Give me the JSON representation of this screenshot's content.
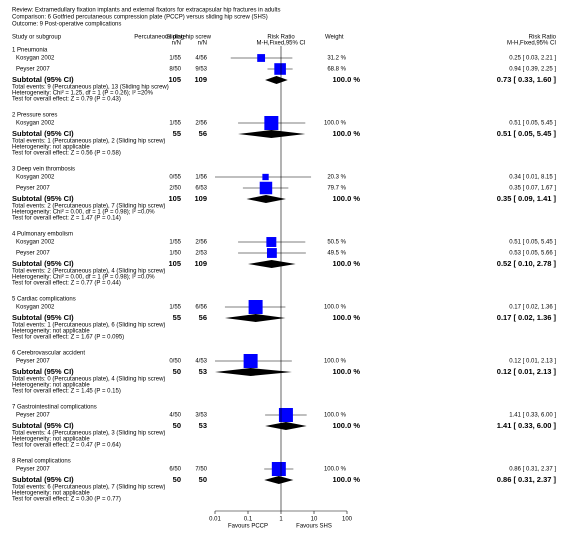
{
  "header": {
    "review": "Review:   Extramedullary fixation implants and external fixators for extracapsular hip fractures in adults",
    "comparison": "Comparison:   6 Gotfried percutaneous compression plate (PCCP) versus sliding hip screw (SHS)",
    "outcome": "Outcome:   9 Post-operative complications"
  },
  "columns": {
    "study": "Study or subgroup",
    "group1": "Percutaneous plate",
    "group1_sub": "n/N",
    "group2": "Sliding hip screw",
    "group2_sub": "n/N",
    "plot": "Risk Ratio",
    "plot_sub": "M-H,Fixed,95% CI",
    "weight": "Weight",
    "ci": "Risk Ratio",
    "ci_sub": "M-H,Fixed,95% CI"
  },
  "chart_data": {
    "type": "forest",
    "xlim": [
      0.01,
      100
    ],
    "xticks": [
      0.01,
      0.1,
      1,
      10,
      100
    ],
    "log_x": true,
    "color": "#0000ff",
    "left_label": "Favours PCCP",
    "right_label": "Favours SHS",
    "groups": [
      {
        "title": "1 Pneumonia",
        "studies": [
          {
            "name": "Kosygan 2002",
            "n1": "1/55",
            "n2": "4/56",
            "weight": 31.2,
            "weight_label": "31.2 %",
            "rr": 0.25,
            "lo": 0.03,
            "hi": 2.21,
            "ci_label": "0.25 [ 0.03, 2.21 ]"
          },
          {
            "name": "Peyser 2007",
            "n1": "8/50",
            "n2": "9/53",
            "weight": 68.8,
            "weight_label": "68.8 %",
            "rr": 0.94,
            "lo": 0.39,
            "hi": 2.25,
            "ci_label": "0.94 [ 0.39, 2.25 ]"
          }
        ],
        "subtotal": {
          "label": "Subtotal (95% CI)",
          "n1": 105,
          "n2": 109,
          "weight_label": "100.0 %",
          "rr": 0.73,
          "lo": 0.33,
          "hi": 1.6,
          "ci_label": "0.73 [ 0.33, 1.60 ]"
        },
        "notes": [
          "Total events: 9 (Percutaneous plate), 13 (Sliding hip screw)",
          "Heterogeneity: Chi² = 1.25, df = 1 (P = 0.26); I² =20%",
          "Test for overall effect: Z = 0.79 (P = 0.43)"
        ]
      },
      {
        "title": "2 Pressure sores",
        "studies": [
          {
            "name": "Kosygan 2002",
            "n1": "1/55",
            "n2": "2/56",
            "weight": 100.0,
            "weight_label": "100.0 %",
            "rr": 0.51,
            "lo": 0.05,
            "hi": 5.45,
            "ci_label": "0.51 [ 0.05, 5.45 ]"
          }
        ],
        "subtotal": {
          "label": "Subtotal (95% CI)",
          "n1": 55,
          "n2": 56,
          "weight_label": "100.0 %",
          "rr": 0.51,
          "lo": 0.05,
          "hi": 5.45,
          "ci_label": "0.51 [ 0.05, 5.45 ]"
        },
        "notes": [
          "Total events: 1 (Percutaneous plate), 2 (Sliding hip screw)",
          "Heterogeneity: not applicable",
          "Test for overall effect: Z = 0.56 (P = 0.58)"
        ]
      },
      {
        "title": "3 Deep vein thrombosis",
        "studies": [
          {
            "name": "Kosygan 2002",
            "n1": "0/55",
            "n2": "1/56",
            "weight": 20.3,
            "weight_label": "20.3 %",
            "rr": 0.34,
            "lo": 0.01,
            "hi": 8.15,
            "ci_label": "0.34 [ 0.01, 8.15 ]"
          },
          {
            "name": "Peyser 2007",
            "n1": "2/50",
            "n2": "6/53",
            "weight": 79.7,
            "weight_label": "79.7 %",
            "rr": 0.35,
            "lo": 0.07,
            "hi": 1.67,
            "ci_label": "0.35 [ 0.07, 1.67 ]"
          }
        ],
        "subtotal": {
          "label": "Subtotal (95% CI)",
          "n1": 105,
          "n2": 109,
          "weight_label": "100.0 %",
          "rr": 0.35,
          "lo": 0.09,
          "hi": 1.41,
          "ci_label": "0.35 [ 0.09, 1.41 ]"
        },
        "notes": [
          "Total events: 2 (Percutaneous plate), 7 (Sliding hip screw)",
          "Heterogeneity: Chi² = 0.00, df = 1 (P = 0.98); I² =0.0%",
          "Test for overall effect: Z = 1.47 (P = 0.14)"
        ]
      },
      {
        "title": "4 Pulmonary embolism",
        "studies": [
          {
            "name": "Kosygan 2002",
            "n1": "1/55",
            "n2": "2/56",
            "weight": 50.5,
            "weight_label": "50.5 %",
            "rr": 0.51,
            "lo": 0.05,
            "hi": 5.45,
            "ci_label": "0.51 [ 0.05, 5.45 ]"
          },
          {
            "name": "Peyser 2007",
            "n1": "1/50",
            "n2": "2/53",
            "weight": 49.5,
            "weight_label": "49.5 %",
            "rr": 0.53,
            "lo": 0.05,
            "hi": 5.66,
            "ci_label": "0.53 [ 0.05, 5.66 ]"
          }
        ],
        "subtotal": {
          "label": "Subtotal (95% CI)",
          "n1": 105,
          "n2": 109,
          "weight_label": "100.0 %",
          "rr": 0.52,
          "lo": 0.1,
          "hi": 2.78,
          "ci_label": "0.52 [ 0.10, 2.78 ]"
        },
        "notes": [
          "Total events: 2 (Percutaneous plate), 4 (Sliding hip screw)",
          "Heterogeneity: Chi² = 0.00, df = 1 (P = 0.98); I² =0.0%",
          "Test for overall effect: Z = 0.77 (P = 0.44)"
        ]
      },
      {
        "title": "5 Cardiac complications",
        "studies": [
          {
            "name": "Kosygan 2002",
            "n1": "1/55",
            "n2": "6/56",
            "weight": 100.0,
            "weight_label": "100.0 %",
            "rr": 0.17,
            "lo": 0.02,
            "hi": 1.36,
            "ci_label": "0.17 [ 0.02, 1.36 ]"
          }
        ],
        "subtotal": {
          "label": "Subtotal (95% CI)",
          "n1": 55,
          "n2": 56,
          "weight_label": "100.0 %",
          "rr": 0.17,
          "lo": 0.02,
          "hi": 1.36,
          "ci_label": "0.17 [ 0.02, 1.36 ]"
        },
        "notes": [
          "Total events: 1 (Percutaneous plate), 6 (Sliding hip screw)",
          "Heterogeneity: not applicable",
          "Test for overall effect: Z = 1.67 (P = 0.095)"
        ]
      },
      {
        "title": "6 Cerebrovascular accident",
        "studies": [
          {
            "name": "Peyser 2007",
            "n1": "0/50",
            "n2": "4/53",
            "weight": 100.0,
            "weight_label": "100.0 %",
            "rr": 0.12,
            "lo": 0.01,
            "hi": 2.13,
            "ci_label": "0.12 [ 0.01, 2.13 ]"
          }
        ],
        "subtotal": {
          "label": "Subtotal (95% CI)",
          "n1": 50,
          "n2": 53,
          "weight_label": "100.0 %",
          "rr": 0.12,
          "lo": 0.01,
          "hi": 2.13,
          "ci_label": "0.12 [ 0.01, 2.13 ]"
        },
        "notes": [
          "Total events: 0 (Percutaneous plate), 4 (Sliding hip screw)",
          "Heterogeneity: not applicable",
          "Test for overall effect: Z = 1.45 (P = 0.15)"
        ]
      },
      {
        "title": "7 Gastrointestinal complications",
        "studies": [
          {
            "name": "Peyser 2007",
            "n1": "4/50",
            "n2": "3/53",
            "weight": 100.0,
            "weight_label": "100.0 %",
            "rr": 1.41,
            "lo": 0.33,
            "hi": 6.0,
            "ci_label": "1.41 [ 0.33, 6.00 ]"
          }
        ],
        "subtotal": {
          "label": "Subtotal (95% CI)",
          "n1": 50,
          "n2": 53,
          "weight_label": "100.0 %",
          "rr": 1.41,
          "lo": 0.33,
          "hi": 6.0,
          "ci_label": "1.41 [ 0.33, 6.00 ]"
        },
        "notes": [
          "Total events: 4 (Percutaneous plate), 3 (Sliding hip screw)",
          "Heterogeneity: not applicable",
          "Test for overall effect: Z = 0.47 (P = 0.64)"
        ]
      },
      {
        "title": "8 Renal complications",
        "studies": [
          {
            "name": "Peyser 2007",
            "n1": "6/50",
            "n2": "7/50",
            "weight": 100.0,
            "weight_label": "100.0 %",
            "rr": 0.86,
            "lo": 0.31,
            "hi": 2.37,
            "ci_label": "0.86 [ 0.31, 2.37 ]"
          }
        ],
        "subtotal": {
          "label": "Subtotal (95% CI)",
          "n1": 50,
          "n2": 50,
          "weight_label": "100.0 %",
          "rr": 0.86,
          "lo": 0.31,
          "hi": 2.37,
          "ci_label": "0.86 [ 0.31, 2.37 ]"
        },
        "notes": [
          "Total events: 6 (Percutaneous plate), 7 (Sliding hip screw)",
          "Heterogeneity: not applicable",
          "Test for overall effect: Z = 0.30 (P = 0.77)"
        ]
      }
    ]
  }
}
